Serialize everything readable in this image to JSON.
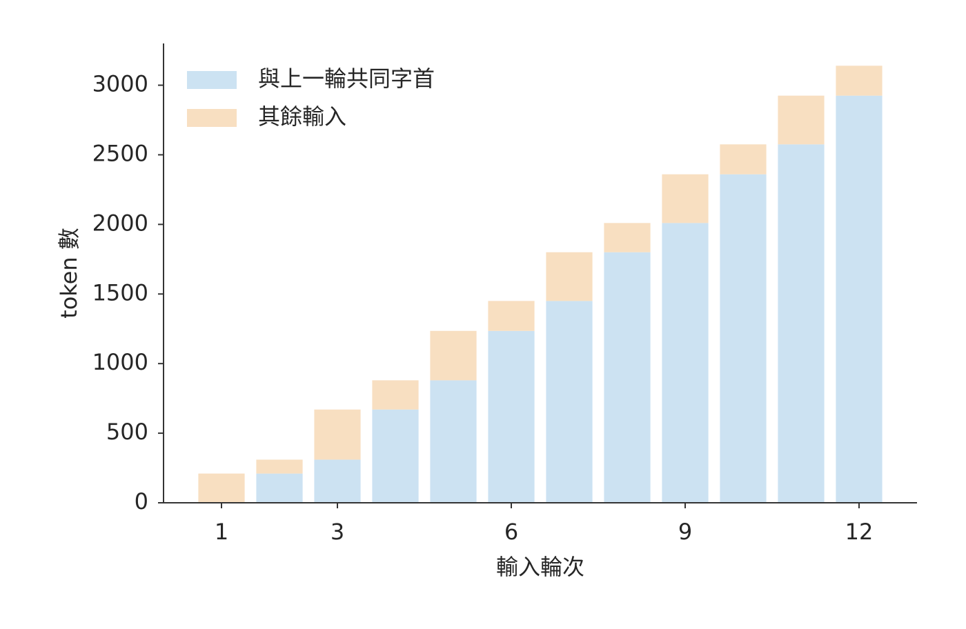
{
  "chart_data": {
    "type": "bar",
    "stacked": true,
    "x_label": "輸入輪次",
    "y_label": "token 數",
    "x": [
      1,
      2,
      3,
      4,
      5,
      6,
      7,
      8,
      9,
      10,
      11,
      12
    ],
    "series": [
      {
        "name": "與上一輪共同字首",
        "color": "#cce2f2",
        "values": [
          0,
          210,
          310,
          670,
          880,
          1235,
          1450,
          1800,
          2010,
          2360,
          2575,
          2925
        ]
      },
      {
        "name": "其餘輸入",
        "color": "#f8dfc1",
        "values": [
          210,
          100,
          360,
          210,
          355,
          215,
          350,
          210,
          350,
          215,
          350,
          215
        ]
      }
    ],
    "xlim": [
      0,
      13
    ],
    "xticks": [
      1,
      3,
      6,
      9,
      12
    ],
    "ylim": [
      0,
      3300
    ],
    "yticks": [
      0,
      500,
      1000,
      1500,
      2000,
      2500,
      3000
    ],
    "grid": false,
    "legend": "upper left"
  }
}
